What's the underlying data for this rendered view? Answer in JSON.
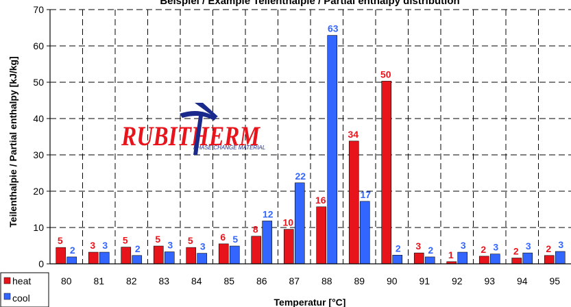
{
  "chart_data": {
    "type": "bar",
    "title": "Beispiel / Example Teilenthalpie / Partial enthalpy distribution",
    "xlabel": "Temperatur [°C]",
    "ylabel": "Teilenthalpie / Partial enthalpy [kJ/kg]",
    "ylim": [
      0,
      70
    ],
    "yticks": [
      "0",
      "10",
      "20",
      "30",
      "40",
      "50",
      "60",
      "70"
    ],
    "grid": true,
    "legend_position": "bottom-left",
    "categories": [
      "80",
      "81",
      "82",
      "83",
      "84",
      "85",
      "86",
      "87",
      "88",
      "89",
      "90",
      "91",
      "92",
      "93",
      "94",
      "95"
    ],
    "series": [
      {
        "name": "heat",
        "color": "#e8141c",
        "values": [
          4.5,
          3.2,
          4.6,
          4.9,
          4.5,
          5.5,
          7.6,
          9.5,
          15.7,
          33.8,
          50.3,
          3.0,
          0.6,
          2.1,
          1.6,
          2.3
        ],
        "labels": [
          "5",
          "3",
          "5",
          "5",
          "5",
          "6",
          "8",
          "10",
          "16",
          "34",
          "50",
          "3",
          "1",
          "2",
          "2",
          "2"
        ]
      },
      {
        "name": "cool",
        "color": "#3366ff",
        "values": [
          1.9,
          3.2,
          2.3,
          3.3,
          2.9,
          4.9,
          11.8,
          22.3,
          62.9,
          17.2,
          2.4,
          1.9,
          3.2,
          2.7,
          3.0,
          3.4
        ],
        "labels": [
          "2",
          "3",
          "2",
          "3",
          "3",
          "5",
          "12",
          "22",
          "63",
          "17",
          "2",
          "2",
          "3",
          "3",
          "3",
          "3"
        ]
      }
    ]
  },
  "logo": {
    "text": "RUBITHERM",
    "subtitle": "PHASE CHANGE MATERIAL"
  }
}
